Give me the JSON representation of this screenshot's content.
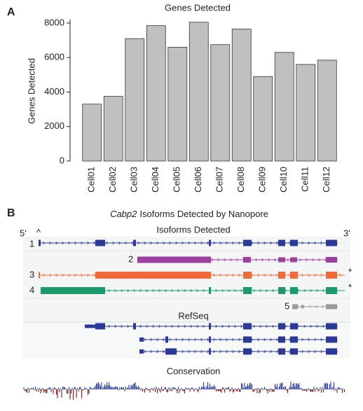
{
  "chart_data": {
    "type": "bar",
    "panel": "A",
    "title": "Genes Detected",
    "y_label": "Genes Detected",
    "categories": [
      "Cell01",
      "Cell02",
      "Cell03",
      "Cell04",
      "Cell05",
      "Cell06",
      "Cell07",
      "Cell08",
      "Cell09",
      "Cell10",
      "Cell11",
      "Cell12"
    ],
    "values": [
      3300,
      3750,
      7100,
      7850,
      6600,
      8050,
      6750,
      7650,
      4900,
      6300,
      5600,
      5850
    ],
    "color": "#c0c0c0",
    "ylim": [
      0,
      8200
    ],
    "yticks": [
      0,
      2000,
      4000,
      6000,
      8000
    ]
  },
  "diagram": {
    "panel": "B",
    "title_gene": "Cabp2",
    "title_rest": "Isoforms Detected by Nanopore",
    "five_prime": "5′",
    "three_prime": "3′",
    "caret": "^",
    "isoform_track": "Isoforms Detected",
    "isoforms": [
      "1",
      "2",
      "3",
      "4",
      "5"
    ],
    "asterisks": [
      "*",
      "*"
    ],
    "refseq_track": "RefSeq",
    "conservation_track": "Conservation"
  }
}
